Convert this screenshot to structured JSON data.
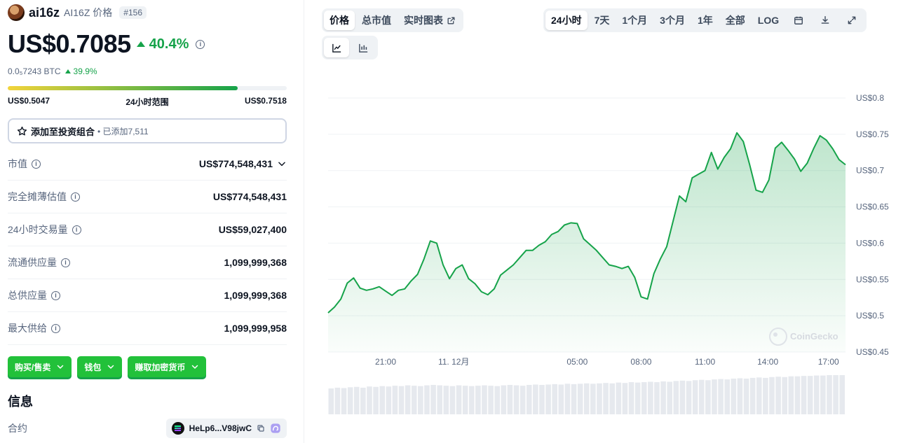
{
  "coin": {
    "name": "ai16z",
    "symbol_label": "AI16Z 价格",
    "rank": "#156"
  },
  "price": {
    "value": "US$0.7085",
    "change": "40.4%",
    "btc_value": "0.0₅7243 BTC",
    "btc_change": "39.9%"
  },
  "range": {
    "low": "US$0.5047",
    "label": "24小时范围",
    "high": "US$0.7518",
    "fill_fraction": 0.825
  },
  "portfolio": {
    "label": "添加至投资组合",
    "added": "• 已添加7,511"
  },
  "stats": [
    {
      "label": "市值",
      "value": "US$774,548,431",
      "has_chevron": true
    },
    {
      "label": "完全摊薄估值",
      "value": "US$774,548,431"
    },
    {
      "label": "24小时交易量",
      "value": "US$59,027,400"
    },
    {
      "label": "流通供应量",
      "value": "1,099,999,368"
    },
    {
      "label": "总供应量",
      "value": "1,099,999,368"
    },
    {
      "label": "最大供给",
      "value": "1,099,999,958"
    }
  ],
  "buttons": {
    "buy_sell": "购买/售卖",
    "wallet": "钱包",
    "earn": "赚取加密货币"
  },
  "info": {
    "title": "信息",
    "contract_label": "合约",
    "contract_value": "HeLp6...V98jwC"
  },
  "chart_tabs": {
    "price": "价格",
    "market_cap": "总市值",
    "live_chart": "实时图表"
  },
  "time_tabs": [
    "24小时",
    "7天",
    "1个月",
    "3个月",
    "1年",
    "全部",
    "LOG"
  ],
  "colors": {
    "line": "#16a34a",
    "accent_green": "#16a34a",
    "button_green": "#22c13a"
  },
  "icons": [
    "line-chart-icon",
    "candlestick-icon",
    "calendar-icon",
    "download-icon",
    "expand-icon",
    "external-link-icon",
    "star-icon",
    "copy-icon"
  ],
  "chart_data": {
    "type": "area",
    "watermark": "CoinGecko",
    "ylim": [
      0.45,
      0.8
    ],
    "y_ticks": [
      "US$0.8",
      "US$0.75",
      "US$0.7",
      "US$0.65",
      "US$0.6",
      "US$0.55",
      "US$0.5",
      "US$0.45"
    ],
    "y_tick_values": [
      0.8,
      0.75,
      0.7,
      0.65,
      0.6,
      0.55,
      0.5,
      0.45
    ],
    "x_ticks": [
      "21:00",
      "11. 12月",
      "05:00",
      "08:00",
      "11:00",
      "14:00",
      "17:00"
    ],
    "x_tick_hours": [
      2.7,
      5.9,
      11.7,
      14.7,
      17.7,
      20.65,
      23.5
    ],
    "x_range_hours": [
      0,
      24.3
    ],
    "price_series": {
      "hours": [
        0,
        0.3,
        0.6,
        0.9,
        1.2,
        1.5,
        1.8,
        2.1,
        2.4,
        2.7,
        3.0,
        3.3,
        3.6,
        3.9,
        4.2,
        4.5,
        4.8,
        5.1,
        5.4,
        5.7,
        6.0,
        6.3,
        6.6,
        6.9,
        7.2,
        7.5,
        7.8,
        8.1,
        8.4,
        8.7,
        9.0,
        9.3,
        9.6,
        9.9,
        10.2,
        10.5,
        10.8,
        11.1,
        11.4,
        11.7,
        12.0,
        12.3,
        12.6,
        12.9,
        13.2,
        13.5,
        13.8,
        14.1,
        14.4,
        14.7,
        15.0,
        15.3,
        15.6,
        15.9,
        16.2,
        16.5,
        16.8,
        17.1,
        17.4,
        17.7,
        18.0,
        18.3,
        18.6,
        18.9,
        19.2,
        19.5,
        19.8,
        20.1,
        20.4,
        20.7,
        21.0,
        21.3,
        21.6,
        21.9,
        22.2,
        22.5,
        22.8,
        23.1,
        23.4,
        23.7,
        24.0,
        24.3
      ],
      "values": [
        0.504,
        0.512,
        0.523,
        0.545,
        0.552,
        0.538,
        0.535,
        0.537,
        0.54,
        0.534,
        0.528,
        0.535,
        0.537,
        0.548,
        0.557,
        0.578,
        0.603,
        0.6,
        0.57,
        0.551,
        0.565,
        0.57,
        0.551,
        0.544,
        0.533,
        0.529,
        0.537,
        0.556,
        0.563,
        0.57,
        0.58,
        0.59,
        0.59,
        0.597,
        0.602,
        0.612,
        0.616,
        0.625,
        0.628,
        0.627,
        0.606,
        0.598,
        0.59,
        0.58,
        0.57,
        0.568,
        0.565,
        0.568,
        0.553,
        0.526,
        0.523,
        0.558,
        0.578,
        0.595,
        0.63,
        0.665,
        0.657,
        0.69,
        0.695,
        0.7,
        0.725,
        0.702,
        0.718,
        0.73,
        0.752,
        0.74,
        0.708,
        0.673,
        0.67,
        0.687,
        0.731,
        0.739,
        0.728,
        0.716,
        0.699,
        0.71,
        0.73,
        0.748,
        0.742,
        0.73,
        0.715,
        0.708
      ]
    },
    "volume_series": {
      "relative_values": [
        0.66,
        0.68,
        0.67,
        0.69,
        0.7,
        0.68,
        0.71,
        0.7,
        0.72,
        0.71,
        0.73,
        0.72,
        0.74,
        0.73,
        0.72,
        0.74,
        0.75,
        0.74,
        0.73,
        0.72,
        0.74,
        0.73,
        0.72,
        0.73,
        0.74,
        0.73,
        0.72,
        0.74,
        0.75,
        0.74,
        0.73,
        0.75,
        0.76,
        0.75,
        0.76,
        0.77,
        0.76,
        0.78,
        0.77,
        0.78,
        0.79,
        0.78,
        0.79,
        0.8,
        0.79,
        0.81,
        0.8,
        0.82,
        0.81,
        0.82,
        0.83,
        0.82,
        0.84,
        0.83,
        0.85,
        0.86,
        0.85,
        0.87,
        0.88,
        0.87,
        0.89,
        0.9,
        0.89,
        0.91,
        0.92,
        0.91,
        0.93,
        0.94,
        0.93,
        0.95,
        0.96,
        0.95,
        0.97,
        0.97,
        0.98,
        0.98,
        0.99,
        0.99,
        1.0,
        1.0,
        1.0
      ]
    }
  }
}
